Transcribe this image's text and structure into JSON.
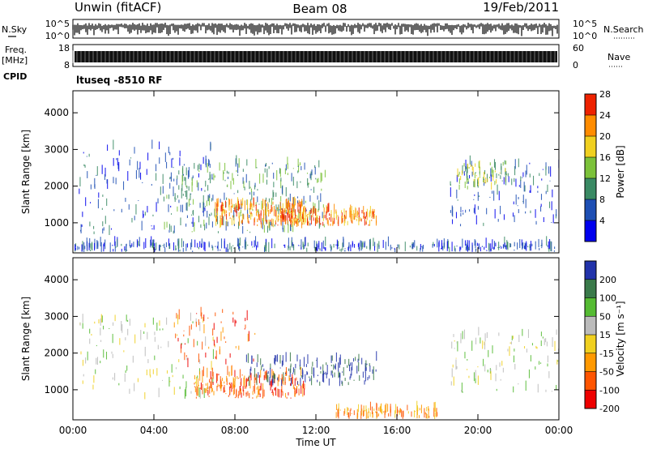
{
  "header": {
    "station": "Unwin (fitACF)",
    "beam": "Beam 08",
    "date": "19/Feb/2011"
  },
  "labels": {
    "nsky": "N.Sky",
    "freq_line1": "Freq.",
    "freq_line2": "[MHz]",
    "cpid": "CPID",
    "nsearch": "N.Search",
    "nave": "Nave",
    "ctrl_prog": "ltuseq -8510 RF"
  },
  "chart_data": [
    {
      "type": "line",
      "name": "noise-panel",
      "ylabel_left": "N.Sky",
      "ylabel_right": "N.Search",
      "left_ticks": [
        "10^5",
        "10^0"
      ],
      "right_ticks": [
        "10^5",
        "10^0"
      ],
      "x_ticks": [
        "00:00",
        "04:00",
        "08:00",
        "12:00",
        "16:00",
        "20:00",
        "00:00"
      ],
      "x_hours": [
        0,
        4,
        8,
        12,
        16,
        20,
        24
      ]
    },
    {
      "type": "bar",
      "name": "freq-nave-panel",
      "left_ticks": [
        "18",
        "8"
      ],
      "right_ticks": [
        "60",
        "0"
      ],
      "note": "ltuseq -8510 RF"
    },
    {
      "type": "heatmap",
      "name": "power-panel",
      "xlabel": "",
      "ylabel": "Slant Range [km]",
      "y_ticks": [
        1000,
        2000,
        3000,
        4000
      ],
      "ylim": [
        180,
        4600
      ],
      "xlim_hours": [
        0,
        24
      ],
      "colorbar": {
        "label": "Power [dB]",
        "ticks": [
          "4",
          "8",
          "12",
          "16",
          "20",
          "24",
          "28"
        ],
        "colors": [
          "#0000ee",
          "#1e4fb4",
          "#3a8a64",
          "#7cc23a",
          "#f0d020",
          "#ff8c00",
          "#ee2200"
        ]
      },
      "regions": [
        {
          "t0": 0.3,
          "t1": 7.0,
          "r0": 600,
          "r1": 3100,
          "level": 1,
          "density": 0.35
        },
        {
          "t0": 4.5,
          "t1": 12.5,
          "r0": 700,
          "r1": 2600,
          "level": 2,
          "density": 0.6
        },
        {
          "t0": 7.0,
          "t1": 11.5,
          "r0": 850,
          "r1": 1500,
          "level": 5,
          "density": 0.7
        },
        {
          "t0": 10.0,
          "t1": 15.0,
          "r0": 900,
          "r1": 1300,
          "level": 5,
          "density": 0.6
        },
        {
          "t0": 18.6,
          "t1": 24,
          "r0": 900,
          "r1": 2600,
          "level": 1,
          "density": 0.35
        },
        {
          "t0": 19.0,
          "t1": 21.5,
          "r0": 1900,
          "r1": 2600,
          "level": 3,
          "density": 0.5
        },
        {
          "t0": 0,
          "t1": 24,
          "r0": 200,
          "r1": 380,
          "level": 1,
          "density": 0.25
        }
      ]
    },
    {
      "type": "heatmap",
      "name": "velocity-panel",
      "xlabel": "Time UT",
      "ylabel": "Slant Range [km]",
      "y_ticks": [
        1000,
        2000,
        3000,
        4000
      ],
      "ylim": [
        180,
        4600
      ],
      "xlim_hours": [
        0,
        24
      ],
      "x_ticks": [
        "00:00",
        "04:00",
        "08:00",
        "12:00",
        "16:00",
        "20:00",
        "00:00"
      ],
      "colorbar": {
        "label": "Velocity [m s⁻¹]",
        "ticks": [
          "200",
          "100",
          "50",
          "15",
          "-15",
          "-50",
          "-100",
          "-200"
        ],
        "colors": [
          "#2233aa",
          "#3a7a4a",
          "#55bb33",
          "#bbbbbb",
          "#f0d020",
          "#ff9900",
          "#ff5500",
          "#ee0000"
        ]
      },
      "regions": [
        {
          "t0": 0.3,
          "t1": 7.0,
          "r0": 700,
          "r1": 2900,
          "level": 3,
          "density": 0.3
        },
        {
          "t0": 6.0,
          "t1": 11.5,
          "r0": 750,
          "r1": 1400,
          "level": 6,
          "density": 0.6
        },
        {
          "t0": 8.5,
          "t1": 15.0,
          "r0": 1100,
          "r1": 1800,
          "level": 0,
          "density": 0.4
        },
        {
          "t0": 5.0,
          "t1": 9.0,
          "r0": 1600,
          "r1": 3100,
          "level": 6,
          "density": 0.25
        },
        {
          "t0": 18.6,
          "t1": 24,
          "r0": 900,
          "r1": 2500,
          "level": 3,
          "density": 0.3
        },
        {
          "t0": 13.0,
          "t1": 18.0,
          "r0": 200,
          "r1": 450,
          "level": 5,
          "density": 0.35
        }
      ]
    }
  ]
}
